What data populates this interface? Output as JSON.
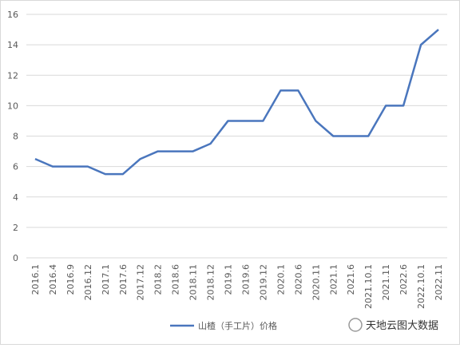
{
  "chart_data": {
    "type": "line",
    "categories": [
      "2016.1",
      "2016.4",
      "2016.9",
      "2016.12",
      "2017.1",
      "2017.6",
      "2017.12",
      "2018.2",
      "2018.6",
      "2018.11",
      "2018.12",
      "2019.1",
      "2019.6",
      "2019.12",
      "2020.1",
      "2020.6",
      "2020.11",
      "2021.1",
      "2021.6",
      "2021.10.1",
      "2021.11",
      "2022.6",
      "2022.10.1",
      "2022.11"
    ],
    "series": [
      {
        "name": "山楂（手工片）价格",
        "color": "#4a76bd",
        "values": [
          6.5,
          6,
          6,
          6,
          5.5,
          5.5,
          6.5,
          7,
          7,
          7,
          7.5,
          9,
          9,
          9,
          11,
          11,
          9,
          8,
          8,
          8,
          10,
          10,
          14,
          15
        ]
      }
    ],
    "ylim": [
      0,
      16
    ],
    "yticks": [
      0,
      2,
      4,
      6,
      8,
      10,
      12,
      14,
      16
    ],
    "grid": true,
    "legend": "bottom",
    "watermark": "天地云图大数据"
  }
}
